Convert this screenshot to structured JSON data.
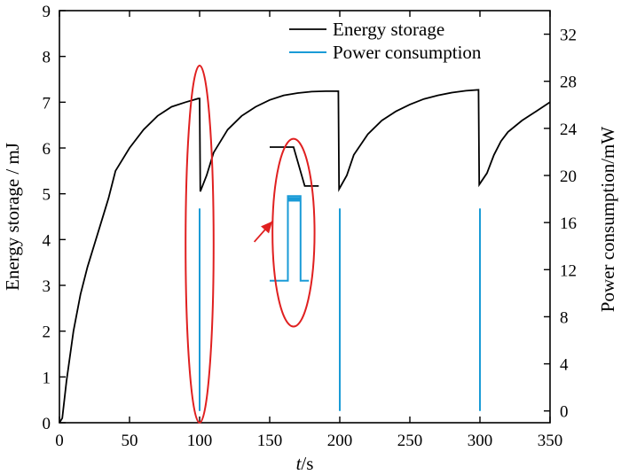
{
  "chart_data": {
    "type": "line",
    "x": {
      "label_italic": "t",
      "label_suffix": "/s",
      "lim": [
        0,
        350
      ],
      "ticks": [
        0,
        50,
        100,
        150,
        200,
        250,
        300,
        350
      ],
      "tick_labels": [
        "0",
        "50",
        "100",
        "150",
        "200",
        "250",
        "300",
        "350"
      ]
    },
    "y_left": {
      "label": "Energy storage / mJ",
      "lim": [
        0,
        9
      ],
      "ticks": [
        0,
        1,
        2,
        3,
        4,
        5,
        6,
        7,
        8,
        9
      ],
      "tick_labels": [
        "0",
        "1",
        "2",
        "3",
        "4",
        "5",
        "6",
        "7",
        "8",
        "9"
      ]
    },
    "y_right": {
      "label": "Power consumption/mW",
      "lim": [
        -1,
        34
      ],
      "ticks": [
        0,
        4,
        8,
        12,
        16,
        20,
        24,
        28,
        32
      ],
      "tick_labels": [
        "0",
        "4",
        "8",
        "12",
        "16",
        "20",
        "24",
        "28",
        "32"
      ]
    },
    "legend_position": "top-right",
    "grid": false,
    "series": [
      {
        "name": "Energy storage",
        "axis": "left",
        "color": "#000000",
        "points": [
          [
            0,
            0
          ],
          [
            2,
            0.1
          ],
          [
            5,
            0.9
          ],
          [
            10,
            2.0
          ],
          [
            15,
            2.8
          ],
          [
            20,
            3.4
          ],
          [
            25,
            3.9
          ],
          [
            30,
            4.4
          ],
          [
            35,
            4.9
          ],
          [
            40,
            5.5
          ],
          [
            50,
            6.0
          ],
          [
            60,
            6.4
          ],
          [
            70,
            6.7
          ],
          [
            80,
            6.9
          ],
          [
            90,
            7.0
          ],
          [
            99,
            7.08
          ],
          [
            100,
            7.08
          ],
          [
            100.5,
            5.05
          ],
          [
            105,
            5.4
          ],
          [
            110,
            5.9
          ],
          [
            120,
            6.4
          ],
          [
            130,
            6.7
          ],
          [
            140,
            6.9
          ],
          [
            150,
            7.05
          ],
          [
            160,
            7.15
          ],
          [
            170,
            7.2
          ],
          [
            180,
            7.23
          ],
          [
            190,
            7.24
          ],
          [
            199,
            7.24
          ],
          [
            199.5,
            5.1
          ],
          [
            205,
            5.4
          ],
          [
            210,
            5.85
          ],
          [
            220,
            6.3
          ],
          [
            230,
            6.6
          ],
          [
            240,
            6.8
          ],
          [
            250,
            6.95
          ],
          [
            260,
            7.07
          ],
          [
            270,
            7.15
          ],
          [
            280,
            7.21
          ],
          [
            290,
            7.25
          ],
          [
            299,
            7.27
          ],
          [
            299.5,
            5.2
          ],
          [
            305,
            5.45
          ],
          [
            310,
            5.85
          ],
          [
            315,
            6.15
          ],
          [
            320,
            6.35
          ],
          [
            330,
            6.6
          ],
          [
            340,
            6.8
          ],
          [
            350,
            7.0
          ]
        ]
      },
      {
        "name": "Power consumption",
        "axis": "right",
        "color": "#1a9bd7",
        "spikes_at_x": [
          100,
          200,
          300
        ],
        "spike_level_mw": 17.2,
        "baseline_mw": 0
      }
    ],
    "annotations": {
      "inset": {
        "energy_trace": [
          [
            150,
            6.02
          ],
          [
            167,
            6.02
          ],
          [
            175,
            5.17
          ],
          [
            185,
            5.17
          ]
        ],
        "power_trace": [
          [
            150,
            3.1
          ],
          [
            163,
            3.1
          ],
          [
            163,
            4.95
          ],
          [
            172,
            4.95
          ],
          [
            172,
            3.1
          ],
          [
            178,
            3.1
          ]
        ],
        "power_cap_band": [
          [
            163,
            4.93
          ],
          [
            172,
            4.83
          ]
        ]
      },
      "highlight_ellipses": [
        {
          "cx": 100,
          "cy": 3.9,
          "rx": 10,
          "ry": 3.9
        },
        {
          "cx": 167,
          "cy": 4.15,
          "rx": 15,
          "ry": 2.05
        }
      ],
      "arrow": {
        "from": [
          139,
          3.95
        ],
        "to": [
          152,
          4.4
        ]
      }
    }
  }
}
